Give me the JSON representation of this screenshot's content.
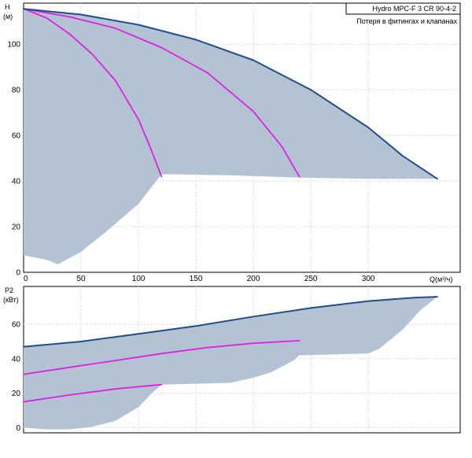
{
  "chart_data": [
    {
      "type": "area",
      "title": "Hydro MPC-F 3 CR 90-4-2",
      "subtitle": "Потеря в фитингах и клапанах",
      "ylabel_line1": "H",
      "ylabel_line2": "(м)",
      "xlabel": "Q(м³/ч)",
      "xlim": [
        0,
        380
      ],
      "ylim": [
        0,
        118
      ],
      "xticks": [
        0,
        50,
        100,
        150,
        200,
        250,
        300
      ],
      "yticks": [
        0,
        20,
        40,
        60,
        80,
        100
      ],
      "grid": true,
      "colors": {
        "envelope": "#1f4e8c",
        "curves": "#e020e0",
        "fill": "#b3c3d4"
      },
      "area": {
        "upper": [
          [
            0,
            115.5
          ],
          [
            50,
            113
          ],
          [
            100,
            108.5
          ],
          [
            150,
            102
          ],
          [
            200,
            93
          ],
          [
            250,
            80
          ],
          [
            300,
            63.5
          ],
          [
            330,
            51
          ],
          [
            360,
            41
          ]
        ],
        "lower": [
          [
            360,
            41
          ],
          [
            300,
            41
          ],
          [
            242,
            41.5
          ],
          [
            240,
            41.5
          ],
          [
            180,
            42.5
          ],
          [
            122,
            43
          ],
          [
            120,
            43
          ],
          [
            100,
            30
          ],
          [
            70,
            17
          ],
          [
            50,
            9
          ],
          [
            30,
            3.5
          ],
          [
            20,
            5.5
          ],
          [
            0,
            7.5
          ]
        ]
      },
      "series": [
        {
          "points": [
            [
              0,
              115.5
            ],
            [
              20,
              111.5
            ],
            [
              40,
              104.5
            ],
            [
              60,
              95.5
            ],
            [
              80,
              84
            ],
            [
              100,
              67
            ],
            [
              110,
              55
            ],
            [
              120,
              42
            ]
          ],
          "role": "curve"
        },
        {
          "points": [
            [
              0,
              115.5
            ],
            [
              40,
              112
            ],
            [
              80,
              107
            ],
            [
              120,
              98.5
            ],
            [
              160,
              87.5
            ],
            [
              200,
              70.5
            ],
            [
              225,
              55
            ],
            [
              240,
              42
            ]
          ],
          "role": "curve"
        },
        {
          "points": [
            [
              0,
              115.5
            ],
            [
              50,
              113
            ],
            [
              100,
              108.5
            ],
            [
              150,
              102
            ],
            [
              200,
              93
            ],
            [
              250,
              80
            ],
            [
              300,
              63.5
            ],
            [
              330,
              51
            ],
            [
              360,
              41
            ]
          ],
          "role": "envelope"
        }
      ]
    },
    {
      "type": "area",
      "ylabel_line1": "P2",
      "ylabel_line2": "(кВт)",
      "xlim": [
        0,
        380
      ],
      "ylim": [
        -3,
        82
      ],
      "yticks": [
        0,
        20,
        40,
        60
      ],
      "grid": true,
      "colors": {
        "envelope": "#1f4e8c",
        "curves": "#e020e0",
        "fill": "#b3c3d4"
      },
      "area": {
        "upper": [
          [
            0,
            47
          ],
          [
            50,
            50
          ],
          [
            100,
            54.5
          ],
          [
            150,
            59
          ],
          [
            200,
            64.5
          ],
          [
            250,
            69.5
          ],
          [
            300,
            73.5
          ],
          [
            340,
            75.5
          ],
          [
            360,
            76
          ]
        ],
        "lower": [
          [
            360,
            76
          ],
          [
            345,
            68
          ],
          [
            330,
            57
          ],
          [
            310,
            46
          ],
          [
            300,
            43
          ],
          [
            240,
            42
          ],
          [
            235,
            39
          ],
          [
            215,
            32
          ],
          [
            200,
            29
          ],
          [
            180,
            26
          ],
          [
            150,
            25.5
          ],
          [
            120,
            25
          ],
          [
            110,
            19
          ],
          [
            100,
            12
          ],
          [
            80,
            4
          ],
          [
            60,
            0.5
          ],
          [
            40,
            -1
          ],
          [
            20,
            -1
          ],
          [
            0,
            0
          ]
        ]
      },
      "series": [
        {
          "points": [
            [
              0,
              31
            ],
            [
              40,
              35
            ],
            [
              80,
              39
            ],
            [
              120,
              43
            ],
            [
              160,
              46.5
            ],
            [
              200,
              49
            ],
            [
              240,
              50.5
            ]
          ],
          "role": "curve"
        },
        {
          "points": [
            [
              0,
              15
            ],
            [
              40,
              19
            ],
            [
              80,
              22.5
            ],
            [
              120,
              25
            ]
          ],
          "role": "curve"
        },
        {
          "points": [
            [
              0,
              47
            ],
            [
              50,
              50
            ],
            [
              100,
              54.5
            ],
            [
              150,
              59
            ],
            [
              200,
              64.5
            ],
            [
              250,
              69.5
            ],
            [
              300,
              73.5
            ],
            [
              340,
              75.5
            ],
            [
              360,
              76
            ]
          ],
          "role": "envelope"
        }
      ]
    }
  ]
}
